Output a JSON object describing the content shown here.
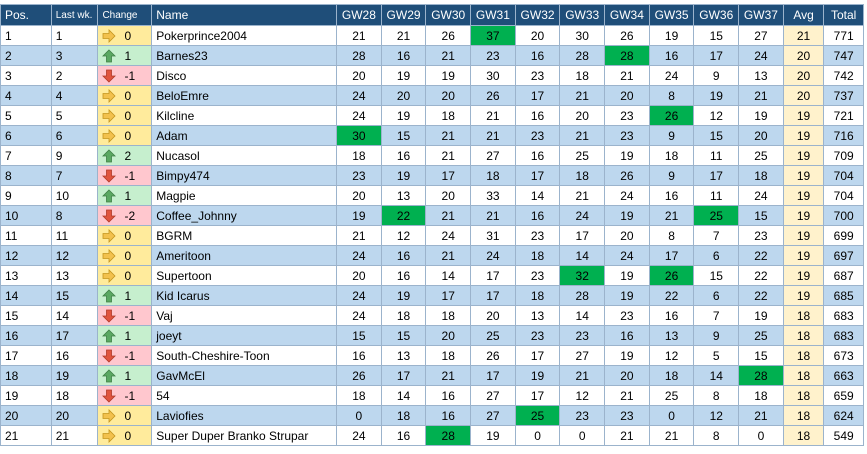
{
  "headers": [
    "Pos.",
    "Last wk.",
    "Change",
    "Name",
    "GW28",
    "GW29",
    "GW30",
    "GW31",
    "GW32",
    "GW33",
    "GW34",
    "GW35",
    "GW36",
    "GW37",
    "Avg",
    "Total"
  ],
  "colors": {
    "header_bg": "#1f4e79",
    "alt_row": "#bdd7ee",
    "highlight": "#00b050",
    "up": "#c6efce",
    "down": "#ffc7ce",
    "same": "#ffeb9c",
    "avg": "#fff2cc"
  },
  "rows": [
    {
      "pos": "1",
      "last": "1",
      "dir": "same",
      "change": "0",
      "name": "Pokerprince2004",
      "gw": [
        "21",
        "21",
        "26",
        "37",
        "20",
        "30",
        "26",
        "19",
        "15",
        "27"
      ],
      "hi": [
        3
      ],
      "avg": "21",
      "total": "771"
    },
    {
      "pos": "2",
      "last": "3",
      "dir": "up",
      "change": "1",
      "name": "Barnes23",
      "gw": [
        "28",
        "16",
        "21",
        "23",
        "16",
        "28",
        "28",
        "16",
        "17",
        "24"
      ],
      "hi": [
        6
      ],
      "avg": "20",
      "total": "747"
    },
    {
      "pos": "3",
      "last": "2",
      "dir": "down",
      "change": "-1",
      "name": "Disco",
      "gw": [
        "20",
        "19",
        "19",
        "30",
        "23",
        "18",
        "21",
        "24",
        "9",
        "13"
      ],
      "hi": [],
      "avg": "20",
      "total": "742"
    },
    {
      "pos": "4",
      "last": "4",
      "dir": "same",
      "change": "0",
      "name": "BeloEmre",
      "gw": [
        "24",
        "20",
        "20",
        "26",
        "17",
        "21",
        "20",
        "8",
        "19",
        "21"
      ],
      "hi": [],
      "avg": "20",
      "total": "737"
    },
    {
      "pos": "5",
      "last": "5",
      "dir": "same",
      "change": "0",
      "name": "Kilcline",
      "gw": [
        "24",
        "19",
        "18",
        "21",
        "16",
        "20",
        "23",
        "26",
        "12",
        "19"
      ],
      "hi": [
        7
      ],
      "avg": "19",
      "total": "721"
    },
    {
      "pos": "6",
      "last": "6",
      "dir": "same",
      "change": "0",
      "name": "Adam",
      "gw": [
        "30",
        "15",
        "21",
        "21",
        "23",
        "21",
        "23",
        "9",
        "15",
        "20"
      ],
      "hi": [
        0
      ],
      "avg": "19",
      "total": "716"
    },
    {
      "pos": "7",
      "last": "9",
      "dir": "up",
      "change": "2",
      "name": "Nucasol",
      "gw": [
        "18",
        "16",
        "21",
        "27",
        "16",
        "25",
        "19",
        "18",
        "11",
        "25"
      ],
      "hi": [],
      "avg": "19",
      "total": "709"
    },
    {
      "pos": "8",
      "last": "7",
      "dir": "down",
      "change": "-1",
      "name": "Bimpy474",
      "gw": [
        "23",
        "19",
        "17",
        "18",
        "17",
        "18",
        "26",
        "9",
        "17",
        "18"
      ],
      "hi": [],
      "avg": "19",
      "total": "704"
    },
    {
      "pos": "9",
      "last": "10",
      "dir": "up",
      "change": "1",
      "name": "Magpie",
      "gw": [
        "20",
        "13",
        "20",
        "33",
        "14",
        "21",
        "24",
        "16",
        "11",
        "24"
      ],
      "hi": [],
      "avg": "19",
      "total": "704"
    },
    {
      "pos": "10",
      "last": "8",
      "dir": "down",
      "change": "-2",
      "name": "Coffee_Johnny",
      "gw": [
        "19",
        "22",
        "21",
        "21",
        "16",
        "24",
        "19",
        "21",
        "25",
        "15"
      ],
      "hi": [
        1,
        8
      ],
      "avg": "19",
      "total": "700"
    },
    {
      "pos": "11",
      "last": "11",
      "dir": "same",
      "change": "0",
      "name": "BGRM",
      "gw": [
        "21",
        "12",
        "24",
        "31",
        "23",
        "17",
        "20",
        "8",
        "7",
        "23"
      ],
      "hi": [],
      "avg": "19",
      "total": "699"
    },
    {
      "pos": "12",
      "last": "12",
      "dir": "same",
      "change": "0",
      "name": "Ameritoon",
      "gw": [
        "24",
        "16",
        "21",
        "24",
        "18",
        "14",
        "24",
        "17",
        "6",
        "22"
      ],
      "hi": [],
      "avg": "19",
      "total": "697"
    },
    {
      "pos": "13",
      "last": "13",
      "dir": "same",
      "change": "0",
      "name": "Supertoon",
      "gw": [
        "20",
        "16",
        "14",
        "17",
        "23",
        "32",
        "19",
        "26",
        "15",
        "22"
      ],
      "hi": [
        5,
        7
      ],
      "avg": "19",
      "total": "687"
    },
    {
      "pos": "14",
      "last": "15",
      "dir": "up",
      "change": "1",
      "name": "Kid Icarus",
      "gw": [
        "24",
        "19",
        "17",
        "17",
        "18",
        "28",
        "19",
        "22",
        "6",
        "22"
      ],
      "hi": [],
      "avg": "19",
      "total": "685"
    },
    {
      "pos": "15",
      "last": "14",
      "dir": "down",
      "change": "-1",
      "name": "Vaj",
      "gw": [
        "24",
        "18",
        "18",
        "20",
        "13",
        "14",
        "23",
        "16",
        "7",
        "19"
      ],
      "hi": [],
      "avg": "18",
      "total": "683"
    },
    {
      "pos": "16",
      "last": "17",
      "dir": "up",
      "change": "1",
      "name": "joeyt",
      "gw": [
        "15",
        "15",
        "20",
        "25",
        "23",
        "23",
        "16",
        "13",
        "9",
        "25"
      ],
      "hi": [],
      "avg": "18",
      "total": "683"
    },
    {
      "pos": "17",
      "last": "16",
      "dir": "down",
      "change": "-1",
      "name": "South-Cheshire-Toon",
      "gw": [
        "16",
        "13",
        "18",
        "26",
        "17",
        "27",
        "19",
        "12",
        "5",
        "15"
      ],
      "hi": [],
      "avg": "18",
      "total": "673"
    },
    {
      "pos": "18",
      "last": "19",
      "dir": "up",
      "change": "1",
      "name": "GavMcEl",
      "gw": [
        "26",
        "17",
        "21",
        "17",
        "19",
        "21",
        "20",
        "18",
        "14",
        "28"
      ],
      "hi": [
        9
      ],
      "avg": "18",
      "total": "663"
    },
    {
      "pos": "19",
      "last": "18",
      "dir": "down",
      "change": "-1",
      "name": "54",
      "gw": [
        "18",
        "14",
        "16",
        "27",
        "17",
        "12",
        "21",
        "25",
        "8",
        "18"
      ],
      "hi": [],
      "avg": "18",
      "total": "659"
    },
    {
      "pos": "20",
      "last": "20",
      "dir": "same",
      "change": "0",
      "name": "Laviofies",
      "gw": [
        "0",
        "18",
        "16",
        "27",
        "25",
        "23",
        "23",
        "0",
        "12",
        "21"
      ],
      "hi": [
        4
      ],
      "avg": "18",
      "total": "624"
    },
    {
      "pos": "21",
      "last": "21",
      "dir": "same",
      "change": "0",
      "name": "Super Duper Branko Strupar",
      "gw": [
        "24",
        "16",
        "28",
        "19",
        "0",
        "0",
        "21",
        "21",
        "8",
        "0"
      ],
      "hi": [
        2
      ],
      "avg": "18",
      "total": "549"
    }
  ]
}
